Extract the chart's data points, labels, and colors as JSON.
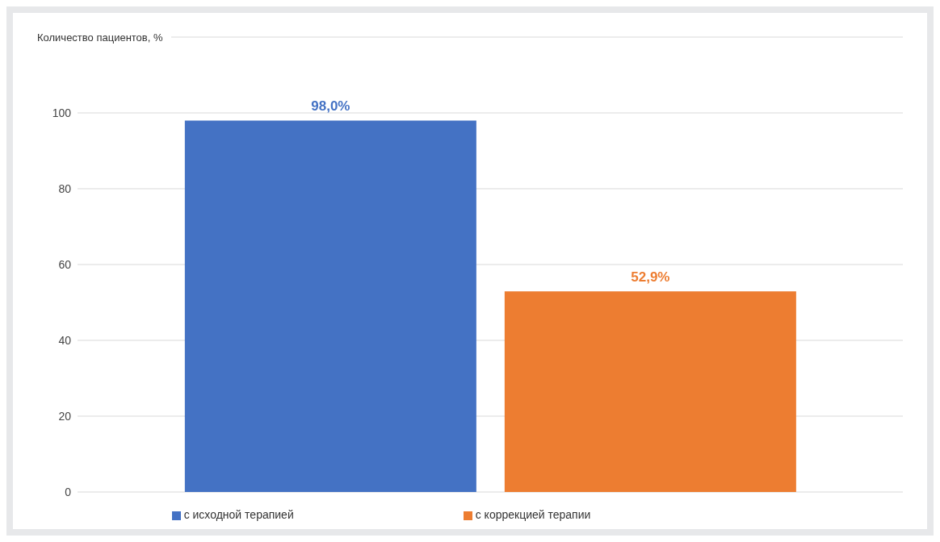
{
  "chart_data": {
    "type": "bar",
    "ylabel": "Количество пациентов, %",
    "categories": [
      null
    ],
    "series": [
      {
        "name": "с исходной терапией",
        "color": "#4472c4",
        "values": [
          98.0
        ],
        "value_labels": [
          "98,0%"
        ]
      },
      {
        "name": "с коррекцией терапии",
        "color": "#ed7d31",
        "values": [
          52.9
        ],
        "value_labels": [
          "52,9%"
        ]
      }
    ],
    "ylim": [
      0,
      120
    ],
    "yticks": [
      0,
      20,
      40,
      60,
      80,
      100,
      {
        "value": 120,
        "label": null
      }
    ],
    "grid": "y",
    "legend": "bottom"
  }
}
